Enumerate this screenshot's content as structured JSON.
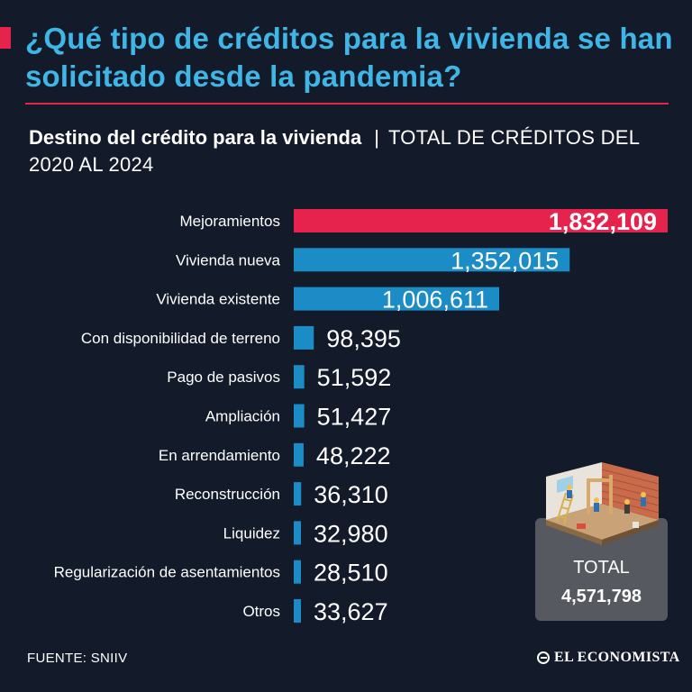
{
  "title": "¿Qué tipo de créditos para la vivienda se han solicitado desde la pandemia?",
  "subtitle": {
    "strong": "Destino del crédito para la vivienda",
    "separator": "|",
    "light": "TOTAL DE CRÉDITOS DEL 2020 AL 2024"
  },
  "colors": {
    "accent": "#e5234c",
    "bar": "#1b8cc6",
    "title": "#3fb6e6",
    "background": "#131a2a"
  },
  "chart_data": {
    "type": "bar",
    "orientation": "horizontal",
    "title": "Destino del crédito para la vivienda",
    "categories": [
      "Mejoramientos",
      "Vivienda nueva",
      "Vivienda existente",
      "Con disponibilidad de terreno",
      "Pago de pasivos",
      "Ampliación",
      "En arrendamiento",
      "Reconstrucción",
      "Liquidez",
      "Regularización de asentamientos",
      "Otros"
    ],
    "values": [
      1832109,
      1352015,
      1006611,
      98395,
      51592,
      51427,
      48222,
      36310,
      32980,
      28510,
      33627
    ],
    "labels": [
      "1,832,109",
      "1,352,015",
      "1,006,611",
      "98,395",
      "51,592",
      "51,427",
      "48,222",
      "36,310",
      "32,980",
      "28,510",
      "33,627"
    ],
    "highlight_index": 0,
    "xlim": [
      0,
      1832109
    ],
    "grid": false
  },
  "total": {
    "label": "TOTAL",
    "value": "4,571,798"
  },
  "source": "FUENTE: SNIIV",
  "brand": "EL ECONOMISTA"
}
